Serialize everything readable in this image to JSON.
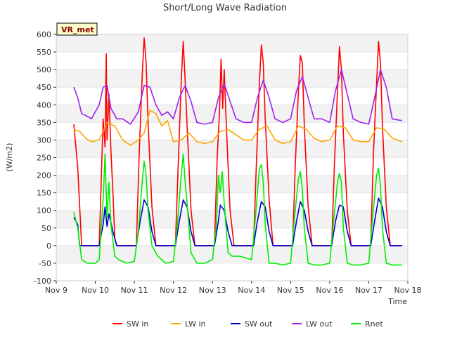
{
  "chart_data": {
    "type": "line",
    "title": "Short/Long Wave Radiation",
    "site_label": "VR_met",
    "xlabel": "Time",
    "ylabel": "(W/m2)",
    "ylim": [
      -100,
      600
    ],
    "yticks": [
      -100,
      -50,
      0,
      50,
      100,
      150,
      200,
      250,
      300,
      350,
      400,
      450,
      500,
      550,
      600
    ],
    "xlim": [
      "Nov 9",
      "Nov 18"
    ],
    "xticks": [
      "Nov 9",
      "Nov 10",
      "Nov 11",
      "Nov 12",
      "Nov 13",
      "Nov 14",
      "Nov 15",
      "Nov 16",
      "Nov 17",
      "Nov 18"
    ],
    "grid": "horizontal bands",
    "legend_position": "bottom",
    "series": [
      {
        "name": "SW in",
        "color": "#ff0000",
        "x": [
          9.45,
          9.55,
          9.65,
          10.1,
          10.2,
          10.25,
          10.28,
          10.3,
          10.35,
          10.4,
          10.45,
          10.5,
          10.55,
          10.65,
          11.05,
          11.12,
          11.2,
          11.25,
          11.3,
          11.35,
          11.45,
          11.55,
          11.65,
          12.05,
          12.12,
          12.2,
          12.25,
          12.3,
          12.35,
          12.45,
          12.55,
          12.65,
          13.05,
          13.12,
          13.18,
          13.22,
          13.26,
          13.3,
          13.35,
          13.45,
          13.55,
          13.65,
          14.05,
          14.12,
          14.2,
          14.25,
          14.3,
          14.35,
          14.45,
          14.55,
          14.65,
          15.05,
          15.12,
          15.2,
          15.25,
          15.3,
          15.35,
          15.45,
          15.55,
          15.65,
          16.05,
          16.12,
          16.2,
          16.25,
          16.3,
          16.35,
          16.45,
          16.55,
          16.65,
          17.05,
          17.12,
          17.2,
          17.25,
          17.3,
          17.35,
          17.45,
          17.55,
          17.65,
          17.85
        ],
        "y": [
          345,
          220,
          0,
          0,
          360,
          280,
          545,
          300,
          430,
          270,
          150,
          20,
          0,
          0,
          0,
          250,
          480,
          590,
          520,
          350,
          110,
          0,
          0,
          0,
          220,
          470,
          580,
          470,
          340,
          100,
          0,
          0,
          0,
          250,
          380,
          530,
          390,
          500,
          350,
          100,
          0,
          0,
          0,
          220,
          460,
          570,
          520,
          360,
          130,
          0,
          0,
          0,
          230,
          440,
          540,
          520,
          340,
          110,
          0,
          0,
          0,
          230,
          440,
          565,
          500,
          320,
          100,
          0,
          0,
          0,
          260,
          460,
          580,
          520,
          340,
          110,
          0,
          0,
          0
        ]
      },
      {
        "name": "LW in",
        "color": "#ffa500",
        "x": [
          9.45,
          9.6,
          9.75,
          9.9,
          10.1,
          10.3,
          10.5,
          10.7,
          10.9,
          11.1,
          11.25,
          11.4,
          11.55,
          11.7,
          11.85,
          12.0,
          12.2,
          12.4,
          12.6,
          12.8,
          13.0,
          13.2,
          13.4,
          13.6,
          13.8,
          14.0,
          14.2,
          14.4,
          14.6,
          14.8,
          15.0,
          15.2,
          15.4,
          15.6,
          15.8,
          16.0,
          16.2,
          16.4,
          16.6,
          16.8,
          17.0,
          17.2,
          17.4,
          17.6,
          17.85
        ],
        "y": [
          330,
          325,
          305,
          295,
          300,
          350,
          340,
          300,
          285,
          300,
          320,
          385,
          375,
          340,
          355,
          295,
          300,
          320,
          295,
          290,
          295,
          325,
          330,
          315,
          300,
          300,
          330,
          340,
          300,
          290,
          295,
          340,
          330,
          305,
          295,
          300,
          340,
          335,
          300,
          295,
          295,
          335,
          330,
          305,
          295
        ]
      },
      {
        "name": "SW out",
        "color": "#0000cc",
        "x": [
          9.45,
          9.55,
          9.6,
          10.1,
          10.2,
          10.25,
          10.3,
          10.35,
          10.45,
          10.55,
          11.05,
          11.15,
          11.25,
          11.35,
          11.45,
          11.55,
          12.05,
          12.15,
          12.25,
          12.35,
          12.45,
          12.55,
          13.05,
          13.15,
          13.2,
          13.3,
          13.4,
          13.5,
          14.05,
          14.15,
          14.25,
          14.35,
          14.45,
          14.55,
          15.05,
          15.15,
          15.25,
          15.35,
          15.45,
          15.55,
          16.05,
          16.15,
          16.25,
          16.35,
          16.45,
          16.55,
          17.05,
          17.15,
          17.25,
          17.35,
          17.45,
          17.55,
          17.85
        ],
        "y": [
          80,
          60,
          0,
          0,
          60,
          110,
          55,
          90,
          40,
          0,
          0,
          70,
          130,
          110,
          40,
          0,
          0,
          70,
          130,
          110,
          40,
          0,
          0,
          70,
          115,
          100,
          40,
          0,
          0,
          70,
          125,
          110,
          40,
          0,
          0,
          70,
          125,
          100,
          40,
          0,
          0,
          70,
          115,
          110,
          40,
          0,
          0,
          70,
          135,
          110,
          40,
          0,
          0
        ]
      },
      {
        "name": "LW out",
        "color": "#a020f0",
        "x": [
          9.45,
          9.55,
          9.65,
          9.75,
          9.9,
          10.1,
          10.2,
          10.3,
          10.4,
          10.55,
          10.7,
          10.9,
          11.1,
          11.25,
          11.4,
          11.55,
          11.7,
          11.85,
          12.0,
          12.15,
          12.3,
          12.45,
          12.6,
          12.8,
          13.0,
          13.15,
          13.3,
          13.45,
          13.6,
          13.8,
          14.0,
          14.15,
          14.3,
          14.45,
          14.6,
          14.8,
          15.0,
          15.15,
          15.3,
          15.45,
          15.6,
          15.8,
          16.0,
          16.15,
          16.3,
          16.45,
          16.6,
          16.8,
          17.0,
          17.15,
          17.3,
          17.45,
          17.6,
          17.85
        ],
        "y": [
          450,
          420,
          375,
          370,
          360,
          400,
          450,
          455,
          390,
          360,
          360,
          345,
          380,
          455,
          450,
          400,
          370,
          380,
          360,
          420,
          455,
          410,
          350,
          345,
          350,
          420,
          460,
          410,
          360,
          350,
          350,
          420,
          470,
          420,
          360,
          350,
          360,
          440,
          480,
          420,
          360,
          360,
          350,
          440,
          500,
          430,
          360,
          350,
          345,
          420,
          500,
          450,
          360,
          355
        ]
      },
      {
        "name": "Rnet",
        "color": "#00ee00",
        "x": [
          9.45,
          9.55,
          9.65,
          9.8,
          10.0,
          10.1,
          10.2,
          10.25,
          10.3,
          10.35,
          10.4,
          10.5,
          10.6,
          10.8,
          11.0,
          11.1,
          11.2,
          11.25,
          11.3,
          11.35,
          11.45,
          11.6,
          11.8,
          12.0,
          12.1,
          12.2,
          12.25,
          12.3,
          12.35,
          12.45,
          12.6,
          12.8,
          13.0,
          13.1,
          13.15,
          13.2,
          13.25,
          13.3,
          13.4,
          13.5,
          13.7,
          14.0,
          14.1,
          14.2,
          14.25,
          14.3,
          14.35,
          14.45,
          14.6,
          14.8,
          15.0,
          15.1,
          15.2,
          15.25,
          15.3,
          15.35,
          15.45,
          15.6,
          15.8,
          16.0,
          16.1,
          16.2,
          16.25,
          16.3,
          16.35,
          16.45,
          16.6,
          16.8,
          17.0,
          17.1,
          17.2,
          17.25,
          17.3,
          17.35,
          17.45,
          17.6,
          17.85
        ],
        "y": [
          95,
          50,
          -40,
          -50,
          -50,
          -40,
          130,
          260,
          80,
          180,
          60,
          -30,
          -40,
          -50,
          -45,
          40,
          180,
          240,
          200,
          100,
          0,
          -30,
          -50,
          -45,
          60,
          200,
          260,
          180,
          120,
          -20,
          -50,
          -50,
          -40,
          60,
          200,
          150,
          210,
          120,
          -20,
          -30,
          -30,
          -40,
          80,
          220,
          230,
          180,
          60,
          -50,
          -50,
          -55,
          -50,
          80,
          190,
          210,
          160,
          50,
          -50,
          -55,
          -55,
          -50,
          70,
          180,
          205,
          180,
          50,
          -50,
          -55,
          -55,
          -50,
          80,
          200,
          220,
          170,
          50,
          -50,
          -55,
          -55
        ]
      }
    ]
  }
}
